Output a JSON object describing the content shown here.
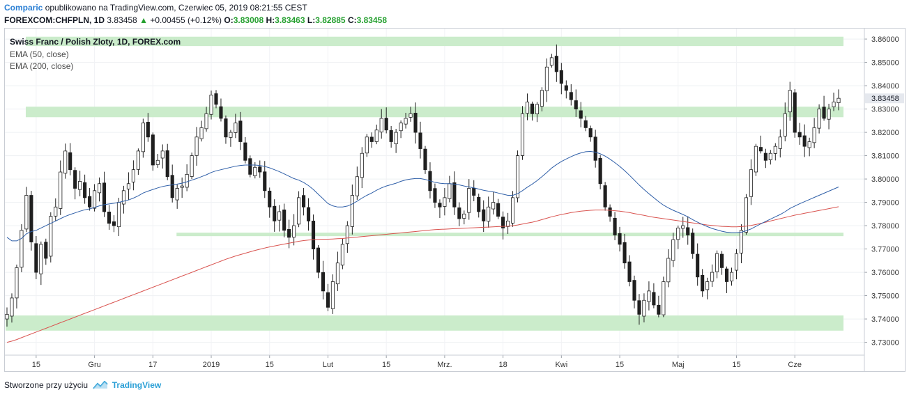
{
  "header": {
    "brand": "Comparic",
    "published": "opublikowano na TradingView.com, Czerwiec 05, 2019 08:21:55 CEST",
    "symbol": "FOREXCOM:CHFPLN, 1D",
    "last": "3.83458",
    "change": "+0.00455 (+0.12%)",
    "o_label": "O:",
    "o_value": "3.83008",
    "h_label": "H:",
    "h_value": "3.83463",
    "l_label": "L:",
    "l_value": "3.82885",
    "c_label": "C:",
    "c_value": "3.83458"
  },
  "legend": {
    "title": "Swiss Franc / Polish Zloty, 1D, FOREX.com",
    "ema50": "EMA (50, close)",
    "ema200": "EMA (200, close)"
  },
  "footer": {
    "text": "Stworzone przy użyciu",
    "brand": "TradingView"
  },
  "colors": {
    "zone": "#c8ebc8",
    "ema50": "#2f5fa8",
    "ema200": "#d9534f",
    "candle": "#1f1f1f",
    "last_price_bg": "#e5e8ee"
  },
  "chart_data": {
    "type": "candlestick",
    "title": "Swiss Franc / Polish Zloty, 1D, FOREX.com",
    "ylim": [
      3.7245,
      3.8645
    ],
    "y_ticks": [
      "3.86000",
      "3.85000",
      "3.84000",
      "3.83000",
      "3.82000",
      "3.81000",
      "3.80000",
      "3.79000",
      "3.78000",
      "3.77000",
      "3.76000",
      "3.75000",
      "3.74000",
      "3.73000"
    ],
    "last_price_label": "3.83458",
    "x_ticks": [
      {
        "label": "15",
        "index": 6
      },
      {
        "label": "Gru",
        "index": 18
      },
      {
        "label": "17",
        "index": 30
      },
      {
        "label": "2019",
        "index": 42
      },
      {
        "label": "15",
        "index": 54
      },
      {
        "label": "Lut",
        "index": 66
      },
      {
        "label": "15",
        "index": 78
      },
      {
        "label": "Mrz.",
        "index": 90
      },
      {
        "label": "18",
        "index": 102
      },
      {
        "label": "Kwi",
        "index": 114
      },
      {
        "label": "15",
        "index": 126
      },
      {
        "label": "Maj",
        "index": 138
      },
      {
        "label": "15",
        "index": 150
      },
      {
        "label": "Cze",
        "index": 162
      }
    ],
    "zones": [
      {
        "from": 3.857,
        "to": 3.861,
        "start_index": 1
      },
      {
        "from": 3.8265,
        "to": 3.831,
        "start_index": 1
      },
      {
        "from": 3.7755,
        "to": 3.777,
        "start_index": 32
      },
      {
        "from": 3.735,
        "to": 3.7415,
        "start_index": 0
      }
    ],
    "closes": [
      3.742,
      3.749,
      3.762,
      3.778,
      3.793,
      3.773,
      3.76,
      3.772,
      3.766,
      3.784,
      3.788,
      3.803,
      3.812,
      3.804,
      3.796,
      3.799,
      3.792,
      3.788,
      3.795,
      3.798,
      3.786,
      3.781,
      3.78,
      3.79,
      3.795,
      3.798,
      3.804,
      3.812,
      3.824,
      3.818,
      3.806,
      3.808,
      3.812,
      3.801,
      3.792,
      3.796,
      3.797,
      3.802,
      3.81,
      3.818,
      3.822,
      3.828,
      3.836,
      3.832,
      3.826,
      3.818,
      3.82,
      3.824,
      3.816,
      3.808,
      3.802,
      3.805,
      3.803,
      3.795,
      3.788,
      3.782,
      3.786,
      3.778,
      3.775,
      3.78,
      3.792,
      3.788,
      3.782,
      3.77,
      3.76,
      3.752,
      3.745,
      3.756,
      3.764,
      3.772,
      3.78,
      3.793,
      3.801,
      3.811,
      3.818,
      3.816,
      3.821,
      3.826,
      3.821,
      3.816,
      3.82,
      3.824,
      3.826,
      3.828,
      3.82,
      3.813,
      3.804,
      3.795,
      3.79,
      3.788,
      3.792,
      3.798,
      3.788,
      3.783,
      3.785,
      3.796,
      3.793,
      3.786,
      3.782,
      3.788,
      3.79,
      3.784,
      3.779,
      3.782,
      3.792,
      3.81,
      3.828,
      3.833,
      3.828,
      3.832,
      3.838,
      3.848,
      3.852,
      3.846,
      3.841,
      3.838,
      3.834,
      3.83,
      3.826,
      3.822,
      3.818,
      3.808,
      3.798,
      3.788,
      3.784,
      3.776,
      3.772,
      3.764,
      3.756,
      3.748,
      3.742,
      3.748,
      3.752,
      3.746,
      3.742,
      3.756,
      3.766,
      3.774,
      3.779,
      3.78,
      3.776,
      3.768,
      3.758,
      3.752,
      3.756,
      3.76,
      3.768,
      3.762,
      3.756,
      3.76,
      3.768,
      3.778,
      3.792,
      3.804,
      3.814,
      3.812,
      3.808,
      3.811,
      3.814,
      3.818,
      3.828,
      3.838,
      3.82,
      3.818,
      3.814,
      3.816,
      3.822,
      3.83,
      3.826,
      3.83,
      3.833,
      3.8346
    ],
    "ema50": [
      3.775,
      3.7735,
      3.7735,
      3.7745,
      3.7765,
      3.7775,
      3.778,
      3.779,
      3.78,
      3.781,
      3.782,
      3.783,
      3.784,
      3.7848,
      3.7855,
      3.7862,
      3.7868,
      3.7872,
      3.7878,
      3.7885,
      3.789,
      3.7893,
      3.7896,
      3.79,
      3.7905,
      3.791,
      3.7918,
      3.7928,
      3.794,
      3.7948,
      3.7955,
      3.7962,
      3.7968,
      3.7972,
      3.7975,
      3.7978,
      3.7982,
      3.7988,
      3.7995,
      3.8002,
      3.801,
      3.8018,
      3.8028,
      3.8035,
      3.804,
      3.8045,
      3.805,
      3.8055,
      3.8058,
      3.806,
      3.806,
      3.806,
      3.8058,
      3.8054,
      3.8048,
      3.804,
      3.8032,
      3.8022,
      3.8012,
      3.8002,
      3.7995,
      3.7985,
      3.7972,
      3.7955,
      3.7935,
      3.7915,
      3.7895,
      3.7885,
      3.788,
      3.788,
      3.7884,
      3.7893,
      3.7905,
      3.7918,
      3.793,
      3.794,
      3.7952,
      3.7962,
      3.797,
      3.7976,
      3.7982,
      3.799,
      3.7996,
      3.8,
      3.8002,
      3.8002,
      3.7998,
      3.7992,
      3.7986,
      3.7982,
      3.798,
      3.798,
      3.7978,
      3.7975,
      3.797,
      3.7966,
      3.7962,
      3.7957,
      3.7952,
      3.7948,
      3.7945,
      3.794,
      3.7935,
      3.793,
      3.793,
      3.7937,
      3.795,
      3.7965,
      3.7978,
      3.7993,
      3.801,
      3.8028,
      3.8047,
      3.8062,
      3.8075,
      3.8086,
      3.8096,
      3.8105,
      3.8112,
      3.8117,
      3.8118,
      3.8115,
      3.8108,
      3.8098,
      3.8085,
      3.807,
      3.8054,
      3.8036,
      3.8016,
      3.7995,
      3.7974,
      3.7955,
      3.7937,
      3.792,
      3.7903,
      3.7888,
      3.7876,
      3.7866,
      3.7857,
      3.7848,
      3.7838,
      3.7826,
      3.7815,
      3.7805,
      3.7796,
      3.7788,
      3.7782,
      3.7776,
      3.7772,
      3.777,
      3.777,
      3.7772,
      3.7778,
      3.7786,
      3.7797,
      3.7808,
      3.7818,
      3.7828,
      3.7838,
      3.7848,
      3.786,
      3.7874,
      3.7884,
      3.7894,
      3.7903,
      3.7912,
      3.7921,
      3.793,
      3.7939,
      3.7948,
      3.7957,
      3.7966
    ],
    "ema200": [
      3.73,
      3.7305,
      3.7312,
      3.732,
      3.7328,
      3.7336,
      3.7344,
      3.7352,
      3.736,
      3.7368,
      3.7376,
      3.7384,
      3.7392,
      3.74,
      3.7408,
      3.7416,
      3.7424,
      3.7432,
      3.744,
      3.7448,
      3.7456,
      3.7464,
      3.7472,
      3.748,
      3.7488,
      3.7496,
      3.7504,
      3.7512,
      3.752,
      3.7528,
      3.7536,
      3.7544,
      3.7552,
      3.756,
      3.7568,
      3.7576,
      3.7584,
      3.7592,
      3.76,
      3.7608,
      3.7616,
      3.7624,
      3.7632,
      3.764,
      3.7648,
      3.7656,
      3.7663,
      3.767,
      3.7676,
      3.7682,
      3.7688,
      3.7694,
      3.7699,
      3.7704,
      3.7709,
      3.7713,
      3.7717,
      3.7721,
      3.7725,
      3.7729,
      3.7733,
      3.7736,
      3.7738,
      3.774,
      3.7741,
      3.7742,
      3.7742,
      3.7743,
      3.7744,
      3.7745,
      3.7747,
      3.7749,
      3.7751,
      3.7753,
      3.7755,
      3.7757,
      3.7759,
      3.7761,
      3.7763,
      3.7765,
      3.7767,
      3.7769,
      3.7771,
      3.7773,
      3.7775,
      3.7777,
      3.7779,
      3.7781,
      3.7783,
      3.7784,
      3.7785,
      3.7786,
      3.7787,
      3.7788,
      3.7789,
      3.779,
      3.7791,
      3.7792,
      3.7793,
      3.7794,
      3.7795,
      3.7796,
      3.7797,
      3.7798,
      3.78,
      3.7803,
      3.7807,
      3.7811,
      3.7815,
      3.782,
      3.7826,
      3.7832,
      3.7838,
      3.7843,
      3.7848,
      3.7852,
      3.7856,
      3.7859,
      3.7862,
      3.7864,
      3.7866,
      3.7867,
      3.7867,
      3.7867,
      3.7866,
      3.7864,
      3.7862,
      3.7859,
      3.7856,
      3.7852,
      3.7848,
      3.7844,
      3.784,
      3.7836,
      3.7833,
      3.783,
      3.7827,
      3.7824,
      3.7821,
      3.7818,
      3.7815,
      3.7812,
      3.7809,
      3.7806,
      3.7803,
      3.7801,
      3.7799,
      3.7797,
      3.7796,
      3.7795,
      3.7795,
      3.7796,
      3.7798,
      3.7801,
      3.7805,
      3.781,
      3.7815,
      3.782,
      3.7825,
      3.783,
      3.7835,
      3.784,
      3.7845,
      3.7849,
      3.7853,
      3.7857,
      3.7861,
      3.7865,
      3.7869,
      3.7873,
      3.7877,
      3.7881
    ]
  }
}
